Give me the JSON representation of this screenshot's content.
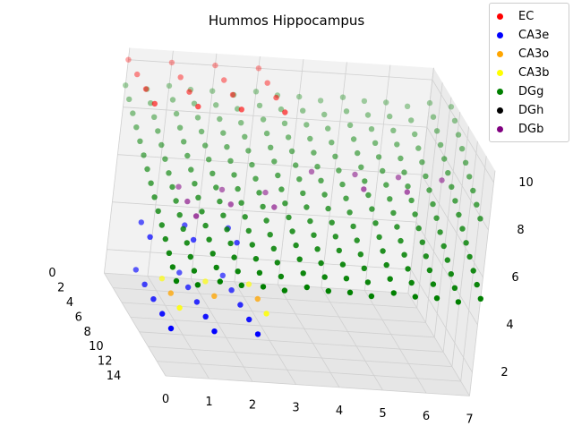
{
  "chart_data": {
    "type": "scatter3d",
    "title": "Hummos Hippocampus",
    "xlabel": "",
    "ylabel": "",
    "zlabel": "",
    "x_ticks": [
      0,
      1,
      2,
      3,
      4,
      5,
      6,
      7
    ],
    "y_ticks": [
      0,
      2,
      4,
      6,
      8,
      10,
      12,
      14
    ],
    "z_ticks": [
      2,
      4,
      6,
      8,
      10
    ],
    "xlim": [
      0,
      7
    ],
    "ylim": [
      0,
      14
    ],
    "zlim": [
      1,
      10.5
    ],
    "legend_position": "top-right",
    "grid": true,
    "series": [
      {
        "name": "EC",
        "color": "#ff0000",
        "points": [
          [
            0,
            0,
            10
          ],
          [
            0,
            2,
            10
          ],
          [
            0,
            4,
            10
          ],
          [
            0,
            6,
            10
          ],
          [
            1,
            0,
            10
          ],
          [
            1,
            2,
            10
          ],
          [
            1,
            4,
            10
          ],
          [
            1,
            6,
            10
          ],
          [
            2,
            0,
            10
          ],
          [
            2,
            2,
            10
          ],
          [
            2,
            4,
            10
          ],
          [
            2,
            6,
            10
          ],
          [
            3,
            0,
            10
          ],
          [
            3,
            2,
            10
          ],
          [
            3,
            4,
            10
          ],
          [
            3,
            6,
            10
          ]
        ]
      },
      {
        "name": "CA3e",
        "color": "#0000ff",
        "points": [
          [
            0,
            6,
            3
          ],
          [
            0,
            8,
            3
          ],
          [
            0,
            10,
            3
          ],
          [
            0,
            12,
            3
          ],
          [
            0,
            14,
            3
          ],
          [
            1,
            6,
            3
          ],
          [
            1,
            8,
            3
          ],
          [
            1,
            10,
            3
          ],
          [
            1,
            12,
            3
          ],
          [
            1,
            14,
            3
          ],
          [
            2,
            6,
            3
          ],
          [
            2,
            8,
            3
          ],
          [
            2,
            10,
            3
          ],
          [
            2,
            12,
            3
          ],
          [
            2,
            14,
            3
          ],
          [
            0,
            6,
            5
          ],
          [
            0,
            8,
            5
          ],
          [
            1,
            6,
            5
          ],
          [
            1,
            8,
            5
          ],
          [
            2,
            6,
            5
          ],
          [
            2,
            8,
            5
          ]
        ]
      },
      {
        "name": "CA3o",
        "color": "#ffa500",
        "points": [
          [
            0.5,
            9,
            3
          ],
          [
            1.5,
            9,
            3
          ],
          [
            2.5,
            9,
            3
          ]
        ]
      },
      {
        "name": "CA3b",
        "color": "#ffff00",
        "points": [
          [
            0.5,
            7,
            3
          ],
          [
            1.5,
            7,
            3
          ],
          [
            2.5,
            7,
            3
          ],
          [
            0.5,
            11,
            3
          ],
          [
            2.5,
            11,
            3
          ]
        ]
      },
      {
        "name": "DGg",
        "color": "#008000",
        "points": "grid-sheets x=0..7 step 1, y=0..14 step 1, z=5..9 diagonal"
      },
      {
        "name": "DGh",
        "color": "#000000",
        "points": []
      },
      {
        "name": "DGb",
        "color": "#800080",
        "points": [
          [
            1,
            4,
            6
          ],
          [
            1,
            6,
            6
          ],
          [
            1,
            8,
            6
          ],
          [
            2,
            4,
            6
          ],
          [
            2,
            6,
            6
          ],
          [
            3,
            4,
            6
          ],
          [
            3,
            6,
            6
          ],
          [
            4,
            4,
            7
          ],
          [
            5,
            4,
            7
          ],
          [
            5,
            6,
            7
          ],
          [
            6,
            4,
            7
          ],
          [
            6,
            6,
            7
          ],
          [
            7,
            4,
            7
          ]
        ]
      }
    ]
  }
}
